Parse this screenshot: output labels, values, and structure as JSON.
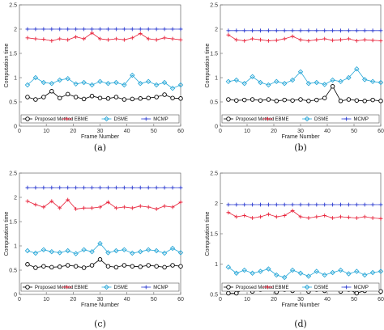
{
  "chart_data": [
    {
      "type": "line",
      "caption": "(a)",
      "xlabel": "Frame Number",
      "ylabel": "Computation time",
      "xlim": [
        0,
        60
      ],
      "ylim": [
        0,
        2.5
      ],
      "xticks": [
        0,
        10,
        20,
        30,
        40,
        50,
        60
      ],
      "yticks": [
        0,
        0.5,
        1,
        1.5,
        2,
        2.5
      ],
      "x": [
        3,
        6,
        9,
        12,
        15,
        18,
        21,
        24,
        27,
        30,
        33,
        36,
        39,
        42,
        45,
        48,
        51,
        54,
        57,
        60
      ],
      "series": [
        {
          "name": "Proposed Method",
          "color": "#000000",
          "marker": "circle",
          "values": [
            0.6,
            0.55,
            0.6,
            0.72,
            0.58,
            0.66,
            0.6,
            0.56,
            0.62,
            0.58,
            0.57,
            0.6,
            0.55,
            0.56,
            0.57,
            0.58,
            0.6,
            0.65,
            0.58,
            0.57
          ]
        },
        {
          "name": "EBME",
          "color": "#e8233b",
          "marker": "plus",
          "values": [
            1.82,
            1.8,
            1.79,
            1.76,
            1.8,
            1.78,
            1.84,
            1.8,
            1.92,
            1.8,
            1.78,
            1.8,
            1.78,
            1.82,
            1.91,
            1.8,
            1.78,
            1.82,
            1.8,
            1.78
          ]
        },
        {
          "name": "DSME",
          "color": "#2aa8d8",
          "marker": "diamond",
          "values": [
            0.85,
            1.0,
            0.9,
            0.88,
            0.95,
            0.98,
            0.87,
            0.9,
            0.85,
            0.92,
            0.88,
            0.9,
            0.85,
            1.05,
            0.88,
            0.92,
            0.85,
            0.9,
            0.78,
            0.85
          ]
        },
        {
          "name": "MCMP",
          "color": "#2b3bd0",
          "marker": "plus",
          "values": [
            2.0,
            2.0,
            2.0,
            2.0,
            2.0,
            2.0,
            2.0,
            2.0,
            2.0,
            2.0,
            2.0,
            2.0,
            2.0,
            2.0,
            2.0,
            2.0,
            2.0,
            2.0,
            2.0,
            2.0
          ]
        }
      ],
      "legend": "bottom"
    },
    {
      "type": "line",
      "caption": "(b)",
      "xlabel": "Frame Number",
      "ylabel": "Computation time",
      "xlim": [
        0,
        60
      ],
      "ylim": [
        0,
        2.5
      ],
      "xticks": [
        0,
        10,
        20,
        30,
        40,
        50,
        60
      ],
      "yticks": [
        0,
        0.5,
        1,
        1.5,
        2,
        2.5
      ],
      "x": [
        3,
        6,
        9,
        12,
        15,
        18,
        21,
        24,
        27,
        30,
        33,
        36,
        39,
        42,
        45,
        48,
        51,
        54,
        57,
        60
      ],
      "series": [
        {
          "name": "Proposed Method",
          "color": "#000000",
          "marker": "circle",
          "values": [
            0.55,
            0.53,
            0.54,
            0.55,
            0.53,
            0.55,
            0.52,
            0.54,
            0.53,
            0.55,
            0.52,
            0.54,
            0.58,
            0.82,
            0.52,
            0.55,
            0.53,
            0.52,
            0.54,
            0.52
          ]
        },
        {
          "name": "EBME",
          "color": "#e8233b",
          "marker": "plus",
          "values": [
            1.88,
            1.78,
            1.76,
            1.8,
            1.78,
            1.76,
            1.77,
            1.8,
            1.85,
            1.78,
            1.76,
            1.78,
            1.8,
            1.77,
            1.78,
            1.8,
            1.76,
            1.78,
            1.77,
            1.76
          ]
        },
        {
          "name": "DSME",
          "color": "#2aa8d8",
          "marker": "diamond",
          "values": [
            0.92,
            0.95,
            0.88,
            1.02,
            0.9,
            0.85,
            0.92,
            0.88,
            0.95,
            1.12,
            0.88,
            0.9,
            0.86,
            0.95,
            0.92,
            1.0,
            1.18,
            0.96,
            0.92,
            0.9
          ]
        },
        {
          "name": "MCMP",
          "color": "#2b3bd0",
          "marker": "plus",
          "values": [
            1.97,
            1.97,
            1.97,
            1.97,
            1.97,
            1.97,
            1.97,
            1.97,
            1.97,
            1.97,
            1.97,
            1.97,
            1.97,
            1.97,
            1.97,
            1.97,
            1.97,
            1.97,
            1.97,
            1.97
          ]
        }
      ],
      "legend": "bottom"
    },
    {
      "type": "line",
      "caption": "(c)",
      "xlabel": "Frame Number",
      "ylabel": "Computation time",
      "xlim": [
        0,
        60
      ],
      "ylim": [
        0,
        2.5
      ],
      "xticks": [
        0,
        10,
        20,
        30,
        40,
        50,
        60
      ],
      "yticks": [
        0,
        0.5,
        1,
        1.5,
        2,
        2.5
      ],
      "x": [
        3,
        6,
        9,
        12,
        15,
        18,
        21,
        24,
        27,
        30,
        33,
        36,
        39,
        42,
        45,
        48,
        51,
        54,
        57,
        60
      ],
      "series": [
        {
          "name": "Proposed Method",
          "color": "#000000",
          "marker": "circle",
          "values": [
            0.62,
            0.55,
            0.58,
            0.56,
            0.57,
            0.6,
            0.58,
            0.55,
            0.6,
            0.72,
            0.58,
            0.56,
            0.6,
            0.58,
            0.57,
            0.6,
            0.58,
            0.56,
            0.6,
            0.58
          ]
        },
        {
          "name": "EBME",
          "color": "#e8233b",
          "marker": "plus",
          "values": [
            1.92,
            1.85,
            1.8,
            1.92,
            1.78,
            1.95,
            1.76,
            1.78,
            1.78,
            1.8,
            1.9,
            1.78,
            1.8,
            1.78,
            1.82,
            1.8,
            1.76,
            1.82,
            1.8,
            1.9
          ]
        },
        {
          "name": "DSME",
          "color": "#2aa8d8",
          "marker": "diamond",
          "values": [
            0.9,
            0.85,
            0.92,
            0.88,
            0.86,
            0.9,
            0.84,
            0.92,
            0.88,
            1.05,
            0.86,
            0.9,
            0.92,
            0.85,
            0.88,
            0.92,
            0.9,
            0.85,
            0.95,
            0.86
          ]
        },
        {
          "name": "MCMP",
          "color": "#2b3bd0",
          "marker": "plus",
          "values": [
            2.2,
            2.2,
            2.2,
            2.2,
            2.2,
            2.2,
            2.2,
            2.2,
            2.2,
            2.2,
            2.2,
            2.2,
            2.2,
            2.2,
            2.2,
            2.2,
            2.2,
            2.2,
            2.2,
            2.2
          ]
        }
      ],
      "legend": "bottom"
    },
    {
      "type": "line",
      "caption": "(d)",
      "xlabel": "Frame Number",
      "ylabel": "Computation time",
      "xlim": [
        0,
        60
      ],
      "ylim": [
        0.5,
        2.5
      ],
      "xticks": [
        0,
        10,
        20,
        30,
        40,
        50,
        60
      ],
      "yticks": [
        0.5,
        1,
        1.5,
        2,
        2.5
      ],
      "x": [
        3,
        6,
        9,
        12,
        15,
        18,
        21,
        24,
        27,
        30,
        33,
        36,
        39,
        42,
        45,
        48,
        51,
        54,
        57,
        60
      ],
      "series": [
        {
          "name": "Proposed Method",
          "color": "#000000",
          "marker": "circle",
          "values": [
            0.52,
            0.52,
            0.6,
            0.55,
            0.58,
            0.6,
            0.54,
            0.58,
            0.56,
            0.65,
            0.55,
            0.58,
            0.56,
            0.6,
            0.55,
            0.58,
            0.52,
            0.56,
            0.6,
            0.55
          ]
        },
        {
          "name": "EBME",
          "color": "#e8233b",
          "marker": "plus",
          "values": [
            1.85,
            1.78,
            1.8,
            1.76,
            1.78,
            1.82,
            1.78,
            1.8,
            1.88,
            1.78,
            1.76,
            1.78,
            1.8,
            1.76,
            1.78,
            1.77,
            1.76,
            1.78,
            1.76,
            1.75
          ]
        },
        {
          "name": "DSME",
          "color": "#2aa8d8",
          "marker": "diamond",
          "values": [
            0.95,
            0.85,
            0.9,
            0.85,
            0.88,
            0.92,
            0.82,
            0.78,
            0.9,
            0.85,
            0.8,
            0.88,
            0.82,
            0.86,
            0.9,
            0.84,
            0.88,
            0.82,
            0.86,
            0.88
          ]
        },
        {
          "name": "MCMP",
          "color": "#2b3bd0",
          "marker": "plus",
          "values": [
            1.98,
            1.98,
            1.98,
            1.98,
            1.98,
            1.98,
            1.98,
            1.98,
            1.98,
            1.98,
            1.98,
            1.98,
            1.98,
            1.98,
            1.98,
            1.98,
            1.98,
            1.98,
            1.98,
            1.98
          ]
        }
      ],
      "legend": "bottom"
    }
  ]
}
